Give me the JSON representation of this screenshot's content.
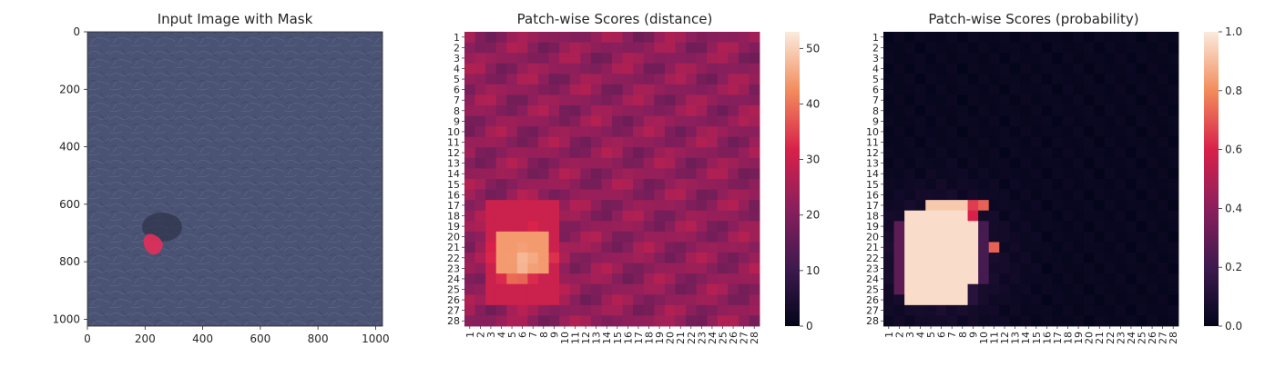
{
  "chart_data": [
    {
      "type": "image",
      "title": "Input Image with Mask",
      "x_ticks": [
        "0",
        "200",
        "400",
        "600",
        "800",
        "1000"
      ],
      "y_ticks": [
        "0",
        "200",
        "400",
        "600",
        "800",
        "1000"
      ],
      "xlim": [
        0,
        1024
      ],
      "ylim": [
        1024,
        0
      ],
      "image_color": "#4a5373",
      "mask_color": "#e0305a",
      "mask_center": [
        230,
        740
      ]
    },
    {
      "type": "heatmap",
      "title": "Patch-wise Scores (distance)",
      "rows": 28,
      "cols": 28,
      "row_labels": [
        "1",
        "2",
        "3",
        "4",
        "5",
        "6",
        "7",
        "8",
        "9",
        "10",
        "11",
        "12",
        "13",
        "14",
        "15",
        "16",
        "17",
        "18",
        "19",
        "20",
        "21",
        "22",
        "23",
        "24",
        "25",
        "26",
        "27",
        "28"
      ],
      "col_labels": [
        "1",
        "2",
        "3",
        "4",
        "5",
        "6",
        "7",
        "8",
        "9",
        "10",
        "11",
        "12",
        "13",
        "14",
        "15",
        "16",
        "17",
        "18",
        "19",
        "20",
        "21",
        "22",
        "23",
        "24",
        "25",
        "26",
        "27",
        "28"
      ],
      "colorbar_ticks": [
        "0",
        "10",
        "20",
        "30",
        "40",
        "50"
      ],
      "vmin": 0,
      "vmax": 53,
      "hotspot": {
        "row": 22,
        "col": 6,
        "peak": 52
      },
      "background_value": 22
    },
    {
      "type": "heatmap",
      "title": "Patch-wise Scores (probability)",
      "rows": 28,
      "cols": 28,
      "row_labels": [
        "1",
        "2",
        "3",
        "4",
        "5",
        "6",
        "7",
        "8",
        "9",
        "10",
        "11",
        "12",
        "13",
        "14",
        "15",
        "16",
        "17",
        "18",
        "19",
        "20",
        "21",
        "22",
        "23",
        "24",
        "25",
        "26",
        "27",
        "28"
      ],
      "col_labels": [
        "1",
        "2",
        "3",
        "4",
        "5",
        "6",
        "7",
        "8",
        "9",
        "10",
        "11",
        "12",
        "13",
        "14",
        "15",
        "16",
        "17",
        "18",
        "19",
        "20",
        "21",
        "22",
        "23",
        "24",
        "25",
        "26",
        "27",
        "28"
      ],
      "colorbar_ticks": [
        "0.0",
        "0.2",
        "0.4",
        "0.6",
        "0.8",
        "1.0"
      ],
      "vmin": 0,
      "vmax": 1,
      "hotspot": {
        "row": 22,
        "col": 6,
        "peak": 1.0
      },
      "background_value": 0.0
    }
  ]
}
